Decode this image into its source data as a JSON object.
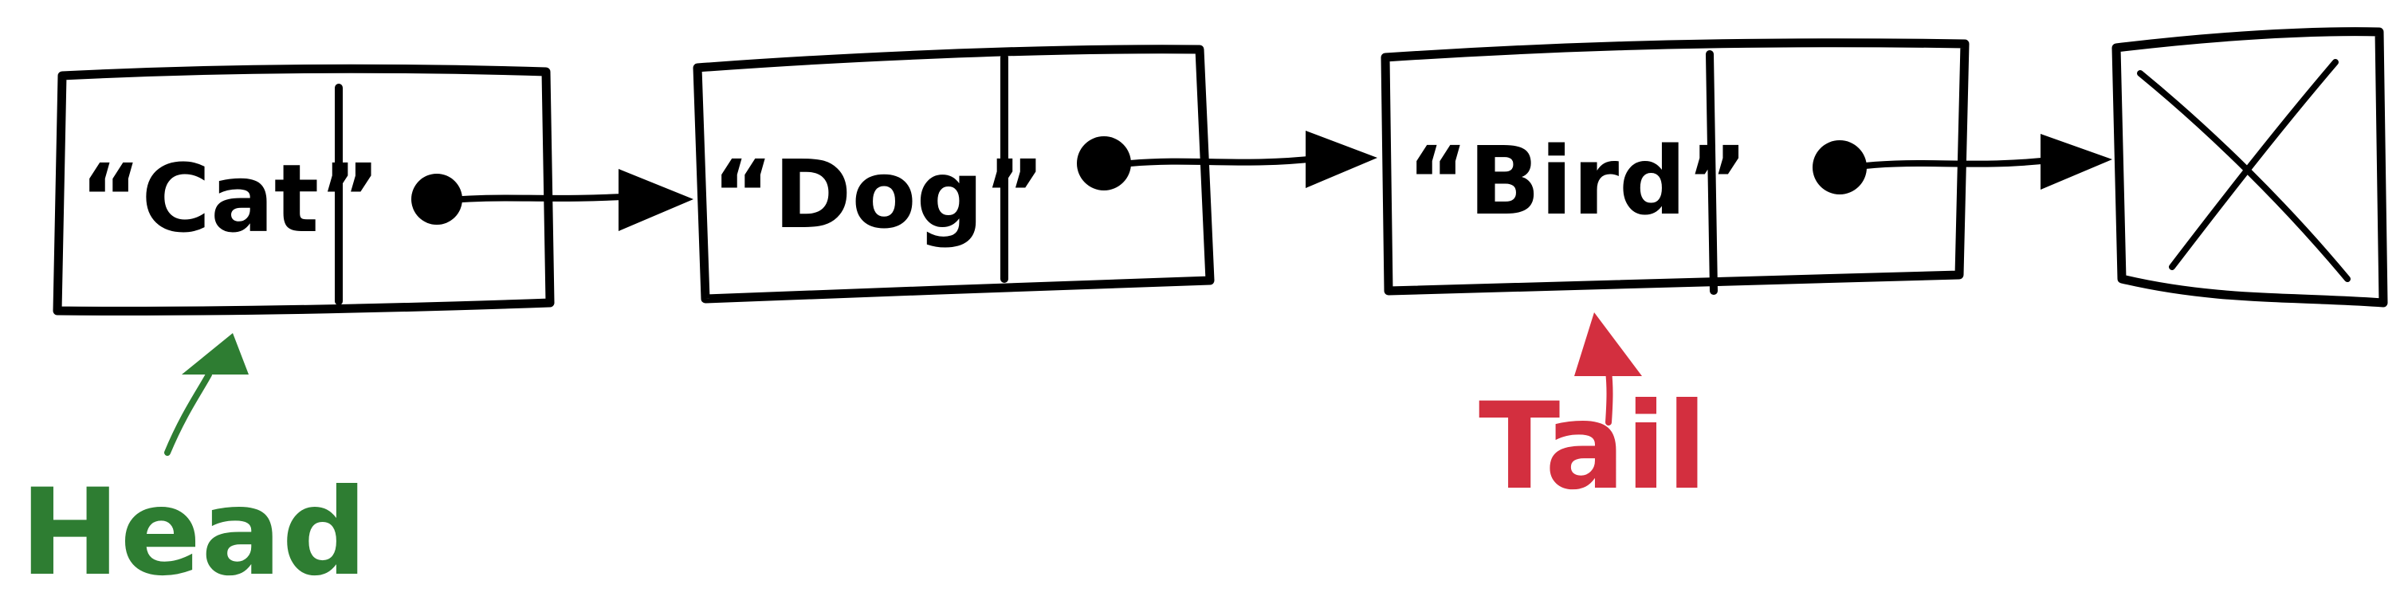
{
  "nodes": [
    {
      "value": "“Cat”"
    },
    {
      "value": "“Dog”"
    },
    {
      "value": "“Bird”"
    }
  ],
  "null_terminator": {
    "icon": "x-mark-icon"
  },
  "labels": {
    "head": {
      "text": "Head",
      "color": "#2e7d32"
    },
    "tail": {
      "text": "Tail",
      "color": "#d32f3f"
    }
  },
  "colors": {
    "stroke": "#000000",
    "background": "#ffffff"
  }
}
